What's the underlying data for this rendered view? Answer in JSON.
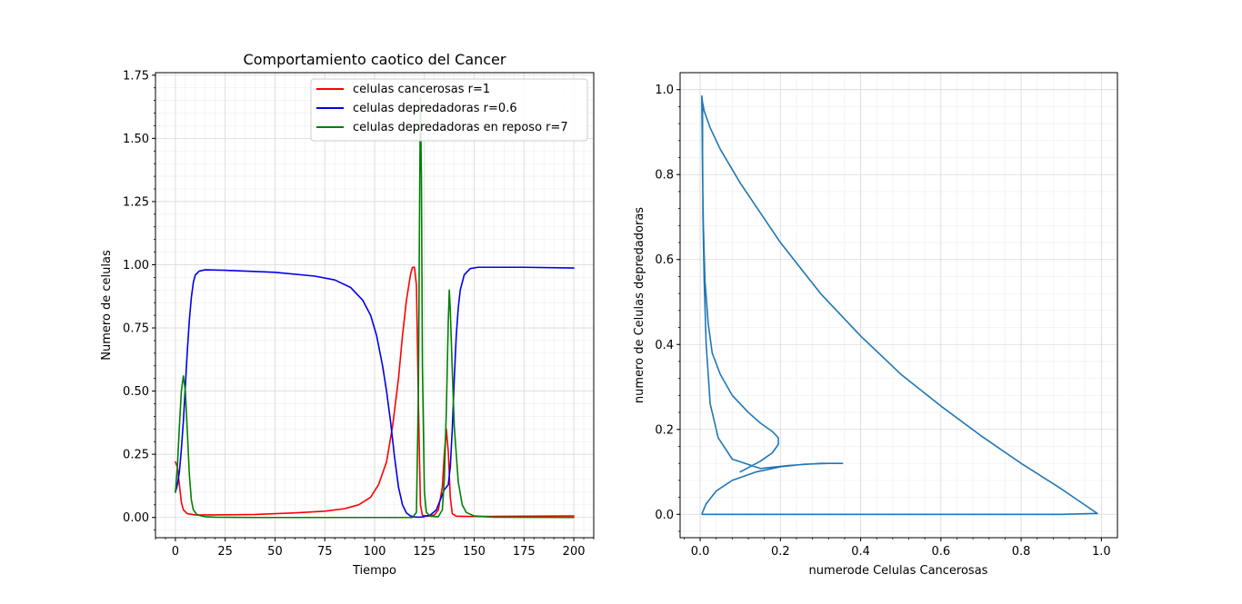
{
  "chart_data": [
    {
      "type": "line",
      "title": "Comportamiento caotico del Cancer",
      "xlabel": "Tiempo",
      "ylabel": "Numero de celulas",
      "xlim": [
        -10,
        210
      ],
      "ylim": [
        -0.08,
        1.76
      ],
      "xticks": [
        0,
        25,
        50,
        75,
        100,
        125,
        150,
        175,
        200
      ],
      "xtick_labels": [
        "0",
        "25",
        "50",
        "75",
        "100",
        "125",
        "150",
        "175",
        "200"
      ],
      "yticks": [
        0.0,
        0.25,
        0.5,
        0.75,
        1.0,
        1.25,
        1.5,
        1.75
      ],
      "ytick_labels": [
        "0.00",
        "0.25",
        "0.50",
        "0.75",
        "1.00",
        "1.25",
        "1.50",
        "1.75"
      ],
      "grid": true,
      "minor_grid": true,
      "legend_position": "upper right",
      "series": [
        {
          "name": "celulas cancerosas r=1",
          "color": "#ff0000",
          "points": [
            [
              0,
              0.22
            ],
            [
              1,
              0.2
            ],
            [
              2,
              0.13
            ],
            [
              3,
              0.06
            ],
            [
              4,
              0.03
            ],
            [
              6,
              0.015
            ],
            [
              10,
              0.01
            ],
            [
              20,
              0.01
            ],
            [
              40,
              0.012
            ],
            [
              60,
              0.018
            ],
            [
              75,
              0.025
            ],
            [
              85,
              0.035
            ],
            [
              92,
              0.05
            ],
            [
              98,
              0.08
            ],
            [
              102,
              0.13
            ],
            [
              106,
              0.22
            ],
            [
              109,
              0.36
            ],
            [
              112,
              0.55
            ],
            [
              114,
              0.72
            ],
            [
              116,
              0.86
            ],
            [
              118,
              0.96
            ],
            [
              119,
              0.99
            ],
            [
              120,
              0.99
            ],
            [
              121,
              0.92
            ],
            [
              122,
              0.45
            ],
            [
              123,
              0.05
            ],
            [
              124,
              0.008
            ],
            [
              127,
              0.005
            ],
            [
              130,
              0.01
            ],
            [
              132,
              0.03
            ],
            [
              134,
              0.12
            ],
            [
              135,
              0.25
            ],
            [
              136,
              0.35
            ],
            [
              137,
              0.26
            ],
            [
              138,
              0.08
            ],
            [
              139,
              0.015
            ],
            [
              141,
              0.005
            ],
            [
              150,
              0.004
            ],
            [
              175,
              0.005
            ],
            [
              200,
              0.006
            ]
          ]
        },
        {
          "name": "celulas depredadoras r=0.6",
          "color": "#0000ee",
          "points": [
            [
              0,
              0.1
            ],
            [
              1,
              0.13
            ],
            [
              2,
              0.18
            ],
            [
              3,
              0.27
            ],
            [
              4,
              0.38
            ],
            [
              5,
              0.52
            ],
            [
              6,
              0.66
            ],
            [
              7,
              0.78
            ],
            [
              8,
              0.87
            ],
            [
              9,
              0.93
            ],
            [
              10,
              0.96
            ],
            [
              12,
              0.975
            ],
            [
              15,
              0.98
            ],
            [
              25,
              0.978
            ],
            [
              50,
              0.97
            ],
            [
              70,
              0.955
            ],
            [
              80,
              0.94
            ],
            [
              88,
              0.91
            ],
            [
              94,
              0.86
            ],
            [
              98,
              0.8
            ],
            [
              101,
              0.72
            ],
            [
              104,
              0.6
            ],
            [
              106,
              0.5
            ],
            [
              108,
              0.38
            ],
            [
              110,
              0.24
            ],
            [
              112,
              0.12
            ],
            [
              114,
              0.05
            ],
            [
              116,
              0.018
            ],
            [
              118,
              0.006
            ],
            [
              120,
              0.002
            ],
            [
              122,
              0.001
            ],
            [
              124,
              0.002
            ],
            [
              128,
              0.01
            ],
            [
              131,
              0.03
            ],
            [
              133,
              0.07
            ],
            [
              134,
              0.09
            ],
            [
              135,
              0.11
            ],
            [
              136,
              0.12
            ],
            [
              137,
              0.13
            ],
            [
              138,
              0.2
            ],
            [
              139,
              0.35
            ],
            [
              140,
              0.55
            ],
            [
              141,
              0.72
            ],
            [
              142,
              0.83
            ],
            [
              143,
              0.9
            ],
            [
              145,
              0.96
            ],
            [
              148,
              0.985
            ],
            [
              152,
              0.99
            ],
            [
              175,
              0.99
            ],
            [
              200,
              0.987
            ]
          ]
        },
        {
          "name": "celulas depredadoras en reposo r=7",
          "color": "#008000",
          "points": [
            [
              0,
              0.1
            ],
            [
              1,
              0.2
            ],
            [
              2,
              0.36
            ],
            [
              3,
              0.5
            ],
            [
              4,
              0.56
            ],
            [
              5,
              0.5
            ],
            [
              6,
              0.34
            ],
            [
              7,
              0.17
            ],
            [
              8,
              0.07
            ],
            [
              9,
              0.03
            ],
            [
              11,
              0.01
            ],
            [
              15,
              0.003
            ],
            [
              20,
              0.001
            ],
            [
              40,
              0.0
            ],
            [
              100,
              0.0
            ],
            [
              119,
              0.0
            ],
            [
              121,
              0.02
            ],
            [
              122,
              0.5
            ],
            [
              122.6,
              1.25
            ],
            [
              123,
              1.66
            ],
            [
              123.5,
              1.35
            ],
            [
              124,
              0.6
            ],
            [
              125,
              0.1
            ],
            [
              126,
              0.02
            ],
            [
              128,
              0.005
            ],
            [
              132,
              0.003
            ],
            [
              134,
              0.03
            ],
            [
              135,
              0.15
            ],
            [
              136,
              0.42
            ],
            [
              137,
              0.78
            ],
            [
              137.5,
              0.9
            ],
            [
              138,
              0.82
            ],
            [
              139,
              0.58
            ],
            [
              140,
              0.36
            ],
            [
              142,
              0.14
            ],
            [
              144,
              0.05
            ],
            [
              146,
              0.02
            ],
            [
              150,
              0.006
            ],
            [
              160,
              0.001
            ],
            [
              200,
              0.0
            ]
          ]
        }
      ]
    },
    {
      "type": "line",
      "title": "",
      "xlabel": "numerode Celulas Cancerosas",
      "ylabel": "numero de Celulas depredadoras",
      "xlim": [
        -0.05,
        1.04
      ],
      "ylim": [
        -0.055,
        1.04
      ],
      "xticks": [
        0.0,
        0.2,
        0.4,
        0.6,
        0.8,
        1.0
      ],
      "xtick_labels": [
        "0.0",
        "0.2",
        "0.4",
        "0.6",
        "0.8",
        "1.0"
      ],
      "yticks": [
        0.0,
        0.2,
        0.4,
        0.6,
        0.8,
        1.0
      ],
      "ytick_labels": [
        "0.0",
        "0.2",
        "0.4",
        "0.6",
        "0.8",
        "1.0"
      ],
      "grid": true,
      "minor_grid": true,
      "series": [
        {
          "color": "#1f77b4",
          "points": [
            [
              0.1,
              0.1
            ],
            [
              0.12,
              0.11
            ],
            [
              0.15,
              0.125
            ],
            [
              0.18,
              0.145
            ],
            [
              0.195,
              0.165
            ],
            [
              0.195,
              0.18
            ],
            [
              0.18,
              0.195
            ],
            [
              0.15,
              0.215
            ],
            [
              0.12,
              0.24
            ],
            [
              0.08,
              0.28
            ],
            [
              0.05,
              0.33
            ],
            [
              0.03,
              0.38
            ],
            [
              0.02,
              0.45
            ],
            [
              0.012,
              0.55
            ],
            [
              0.008,
              0.68
            ],
            [
              0.006,
              0.8
            ],
            [
              0.005,
              0.9
            ],
            [
              0.004,
              0.985
            ],
            [
              0.006,
              0.97
            ],
            [
              0.01,
              0.95
            ],
            [
              0.025,
              0.91
            ],
            [
              0.05,
              0.86
            ],
            [
              0.1,
              0.78
            ],
            [
              0.15,
              0.71
            ],
            [
              0.2,
              0.64
            ],
            [
              0.3,
              0.52
            ],
            [
              0.4,
              0.42
            ],
            [
              0.5,
              0.33
            ],
            [
              0.6,
              0.255
            ],
            [
              0.7,
              0.185
            ],
            [
              0.8,
              0.12
            ],
            [
              0.9,
              0.06
            ],
            [
              0.99,
              0.002
            ],
            [
              0.9,
              0.0
            ],
            [
              0.5,
              0.0
            ],
            [
              0.1,
              0.0
            ],
            [
              0.005,
              0.0
            ],
            [
              0.005,
              0.003
            ],
            [
              0.015,
              0.025
            ],
            [
              0.04,
              0.055
            ],
            [
              0.08,
              0.08
            ],
            [
              0.14,
              0.1
            ],
            [
              0.2,
              0.112
            ],
            [
              0.26,
              0.118
            ],
            [
              0.32,
              0.12
            ],
            [
              0.355,
              0.12
            ],
            [
              0.3,
              0.12
            ],
            [
              0.22,
              0.115
            ],
            [
              0.15,
              0.108
            ],
            [
              0.08,
              0.13
            ],
            [
              0.045,
              0.18
            ],
            [
              0.025,
              0.26
            ],
            [
              0.015,
              0.4
            ],
            [
              0.01,
              0.55
            ],
            [
              0.007,
              0.7
            ],
            [
              0.006,
              0.85
            ],
            [
              0.006,
              0.97
            ]
          ]
        }
      ]
    }
  ]
}
